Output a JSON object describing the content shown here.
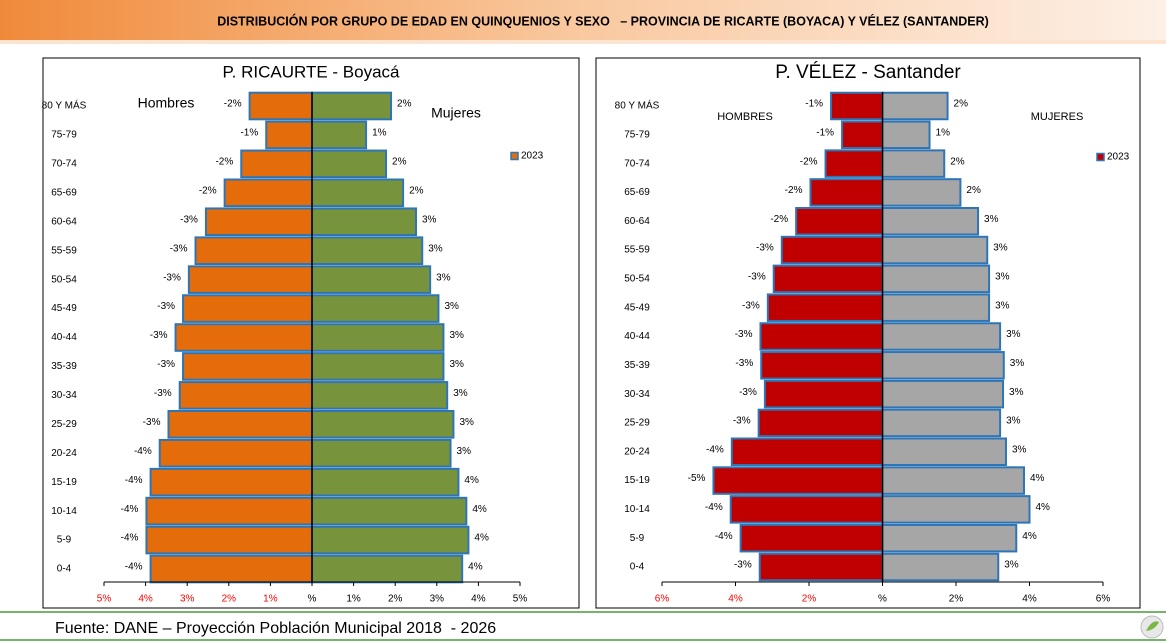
{
  "header": {
    "title": "DISTRIBUCIÓN POR GRUPO DE EDAD EN QUINQUENIOS Y SEXO   – PROVINCIA DE RICARTE (BOYACA) Y VÉLEZ (SANTANDER)"
  },
  "footer": {
    "source": "Fuente: DANE – Proyección Población Municipal 2018  - 2026"
  },
  "chart_data": [
    {
      "type": "pyramid",
      "title": "P. RICAURTE - Boyacá",
      "legend_label": "2023",
      "categories": [
        "80 Y MÁS",
        "75-79",
        "70-74",
        "65-69",
        "60-64",
        "55-59",
        "50-54",
        "45-49",
        "40-44",
        "35-39",
        "30-34",
        "25-29",
        "20-24",
        "15-19",
        "10-14",
        "5-9",
        "0-4"
      ],
      "series": [
        {
          "name": "Hombres",
          "color": "#e46c0a",
          "values": [
            -1.5,
            -1.1,
            -1.7,
            -2.1,
            -2.55,
            -2.8,
            -2.96,
            -3.1,
            -3.28,
            -3.1,
            -3.18,
            -3.45,
            -3.66,
            -3.88,
            -3.98,
            -3.98,
            -3.88
          ],
          "value_labels": [
            "-2%",
            "-1%",
            "-2%",
            "-2%",
            "-3%",
            "-3%",
            "-3%",
            "-3%",
            "-3%",
            "-3%",
            "-3%",
            "-3%",
            "-4%",
            "-4%",
            "-4%",
            "-4%",
            "-4%"
          ]
        },
        {
          "name": "Mujeres",
          "color": "#77933c",
          "values": [
            1.9,
            1.3,
            1.78,
            2.19,
            2.5,
            2.65,
            2.84,
            3.04,
            3.16,
            3.16,
            3.25,
            3.4,
            3.33,
            3.52,
            3.71,
            3.76,
            3.61
          ],
          "value_labels": [
            "2%",
            "1%",
            "2%",
            "2%",
            "3%",
            "3%",
            "3%",
            "3%",
            "3%",
            "3%",
            "3%",
            "3%",
            "3%",
            "4%",
            "4%",
            "4%",
            "4%"
          ]
        }
      ],
      "bar_edge_color": "#2e75b6",
      "negative_tick_color": "#ff0000",
      "xlim": [
        -5,
        5
      ],
      "xticks": [
        {
          "value": -5,
          "label": "5%"
        },
        {
          "value": -4,
          "label": "4%"
        },
        {
          "value": -3,
          "label": "3%"
        },
        {
          "value": -2,
          "label": "2%"
        },
        {
          "value": -1,
          "label": "1%"
        },
        {
          "value": 0,
          "label": "%"
        },
        {
          "value": 1,
          "label": "1%"
        },
        {
          "value": 2,
          "label": "2%"
        },
        {
          "value": 3,
          "label": "3%"
        },
        {
          "value": 4,
          "label": "4%"
        },
        {
          "value": 5,
          "label": "5%"
        }
      ]
    },
    {
      "type": "pyramid",
      "title": "P. VÉLEZ  - Santander",
      "legend_label": "2023",
      "categories": [
        "80 Y MÁS",
        "75-79",
        "70-74",
        "65-69",
        "60-64",
        "55-59",
        "50-54",
        "45-49",
        "40-44",
        "35-39",
        "30-34",
        "25-29",
        "20-24",
        "15-19",
        "10-14",
        "5-9",
        "0-4"
      ],
      "series": [
        {
          "name": "HOMBRES",
          "color": "#c00000",
          "values": [
            -1.4,
            -1.1,
            -1.55,
            -1.96,
            -2.35,
            -2.74,
            -2.96,
            -3.12,
            -3.32,
            -3.3,
            -3.2,
            -3.37,
            -4.1,
            -4.6,
            -4.13,
            -3.86,
            -3.34
          ],
          "value_labels": [
            "-1%",
            "-1%",
            "-2%",
            "-2%",
            "-2%",
            "-3%",
            "-3%",
            "-3%",
            "-3%",
            "-3%",
            "-3%",
            "-3%",
            "-4%",
            "-5%",
            "-4%",
            "-4%",
            "-3%"
          ]
        },
        {
          "name": "MUJERES",
          "color": "#a6a6a6",
          "values": [
            1.77,
            1.28,
            1.68,
            2.12,
            2.6,
            2.85,
            2.9,
            2.9,
            3.2,
            3.3,
            3.28,
            3.2,
            3.36,
            3.85,
            4.0,
            3.64,
            3.15
          ],
          "value_labels": [
            "2%",
            "1%",
            "2%",
            "2%",
            "3%",
            "3%",
            "3%",
            "3%",
            "3%",
            "3%",
            "3%",
            "3%",
            "3%",
            "4%",
            "4%",
            "4%",
            "3%"
          ]
        }
      ],
      "bar_edge_color": "#2e75b6",
      "negative_tick_color": "#ff0000",
      "xlim": [
        -6,
        6
      ],
      "xticks": [
        {
          "value": -6,
          "label": "6%"
        },
        {
          "value": -4,
          "label": "4%"
        },
        {
          "value": -2,
          "label": "2%"
        },
        {
          "value": 0,
          "label": "%"
        },
        {
          "value": 2,
          "label": "2%"
        },
        {
          "value": 4,
          "label": "4%"
        },
        {
          "value": 6,
          "label": "6%"
        }
      ]
    }
  ]
}
